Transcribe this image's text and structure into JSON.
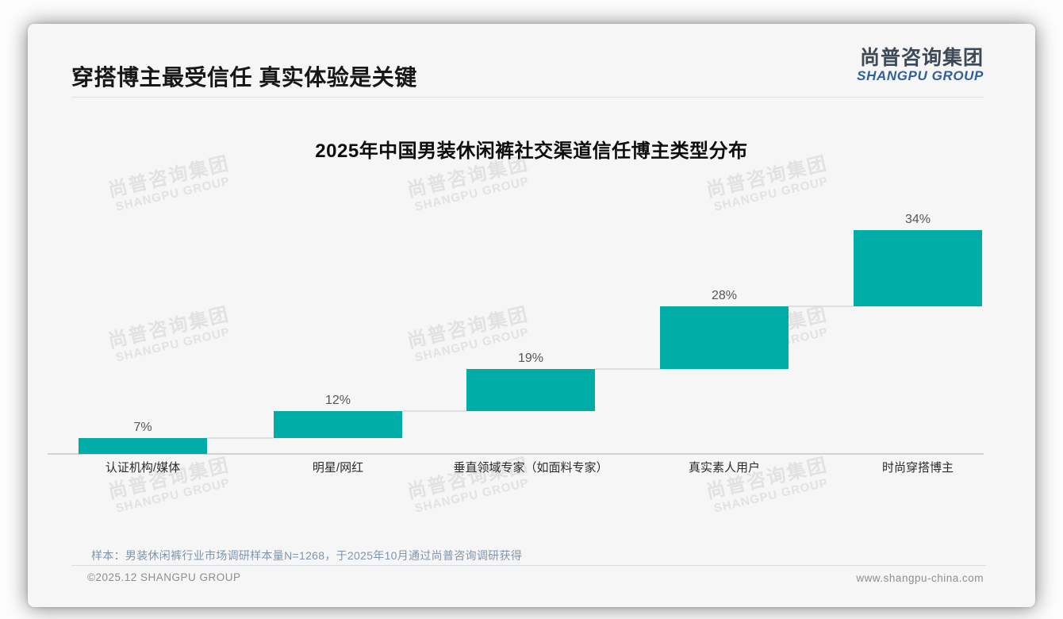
{
  "page": {
    "title": "穿搭博主最受信任 真实体验是关键",
    "logo_cn": "尚普咨询集团",
    "logo_en": "SHANGPU GROUP"
  },
  "chart_data": {
    "type": "bar",
    "subtype": "waterfall-staircase",
    "title": "2025年中国男装休闲裤社交渠道信任博主类型分布",
    "categories": [
      "认证机构/媒体",
      "明星/网红",
      "垂直领域专家（如面料专家）",
      "真实素人用户",
      "时尚穿搭博主"
    ],
    "values": [
      7,
      12,
      19,
      28,
      34
    ],
    "labels": [
      "7%",
      "12%",
      "19%",
      "28%",
      "34%"
    ],
    "cumulative_starts": [
      0,
      7,
      19,
      38,
      66
    ],
    "unit": "%",
    "ylim": [
      0,
      100
    ],
    "xlabel": "",
    "ylabel": "",
    "grid": false,
    "legend": "none",
    "bar_color": "#00aca6",
    "connector_color": "#dfdfdf",
    "baseline_color": "#d2d2d2"
  },
  "footnote": "样本：男装休闲裤行业市场调研样本量N=1268，于2025年10月通过尚普咨询调研获得",
  "footer": {
    "left": "©2025.12 SHANGPU GROUP",
    "right": "www.shangpu-china.com"
  },
  "watermark": {
    "line1": "尚普咨询集团",
    "line2": "SHANGPU GROUP"
  }
}
